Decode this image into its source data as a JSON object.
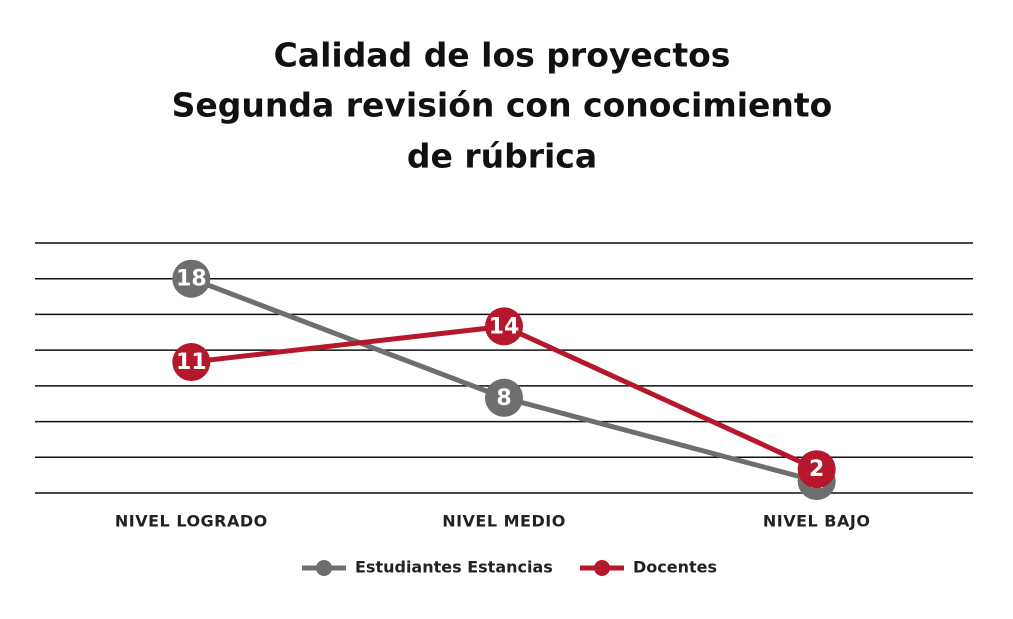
{
  "chart_data": {
    "type": "line",
    "title": [
      "Calidad de los proyectos",
      "Segunda revisión con conocimiento",
      "de rúbrica"
    ],
    "categories": [
      "NIVEL LOGRADO",
      "NIVEL MEDIO",
      "NIVEL BAJO"
    ],
    "series": [
      {
        "name": "Estudiantes Estancias",
        "color": "#6e6e6e",
        "values": [
          18,
          8,
          1
        ]
      },
      {
        "name": "Docentes",
        "color": "#b5172b",
        "values": [
          11,
          14,
          2
        ]
      }
    ],
    "ylim": [
      0,
      21
    ],
    "yticks": [
      0,
      3,
      6,
      9,
      12,
      15,
      18,
      21
    ],
    "grid": true
  }
}
